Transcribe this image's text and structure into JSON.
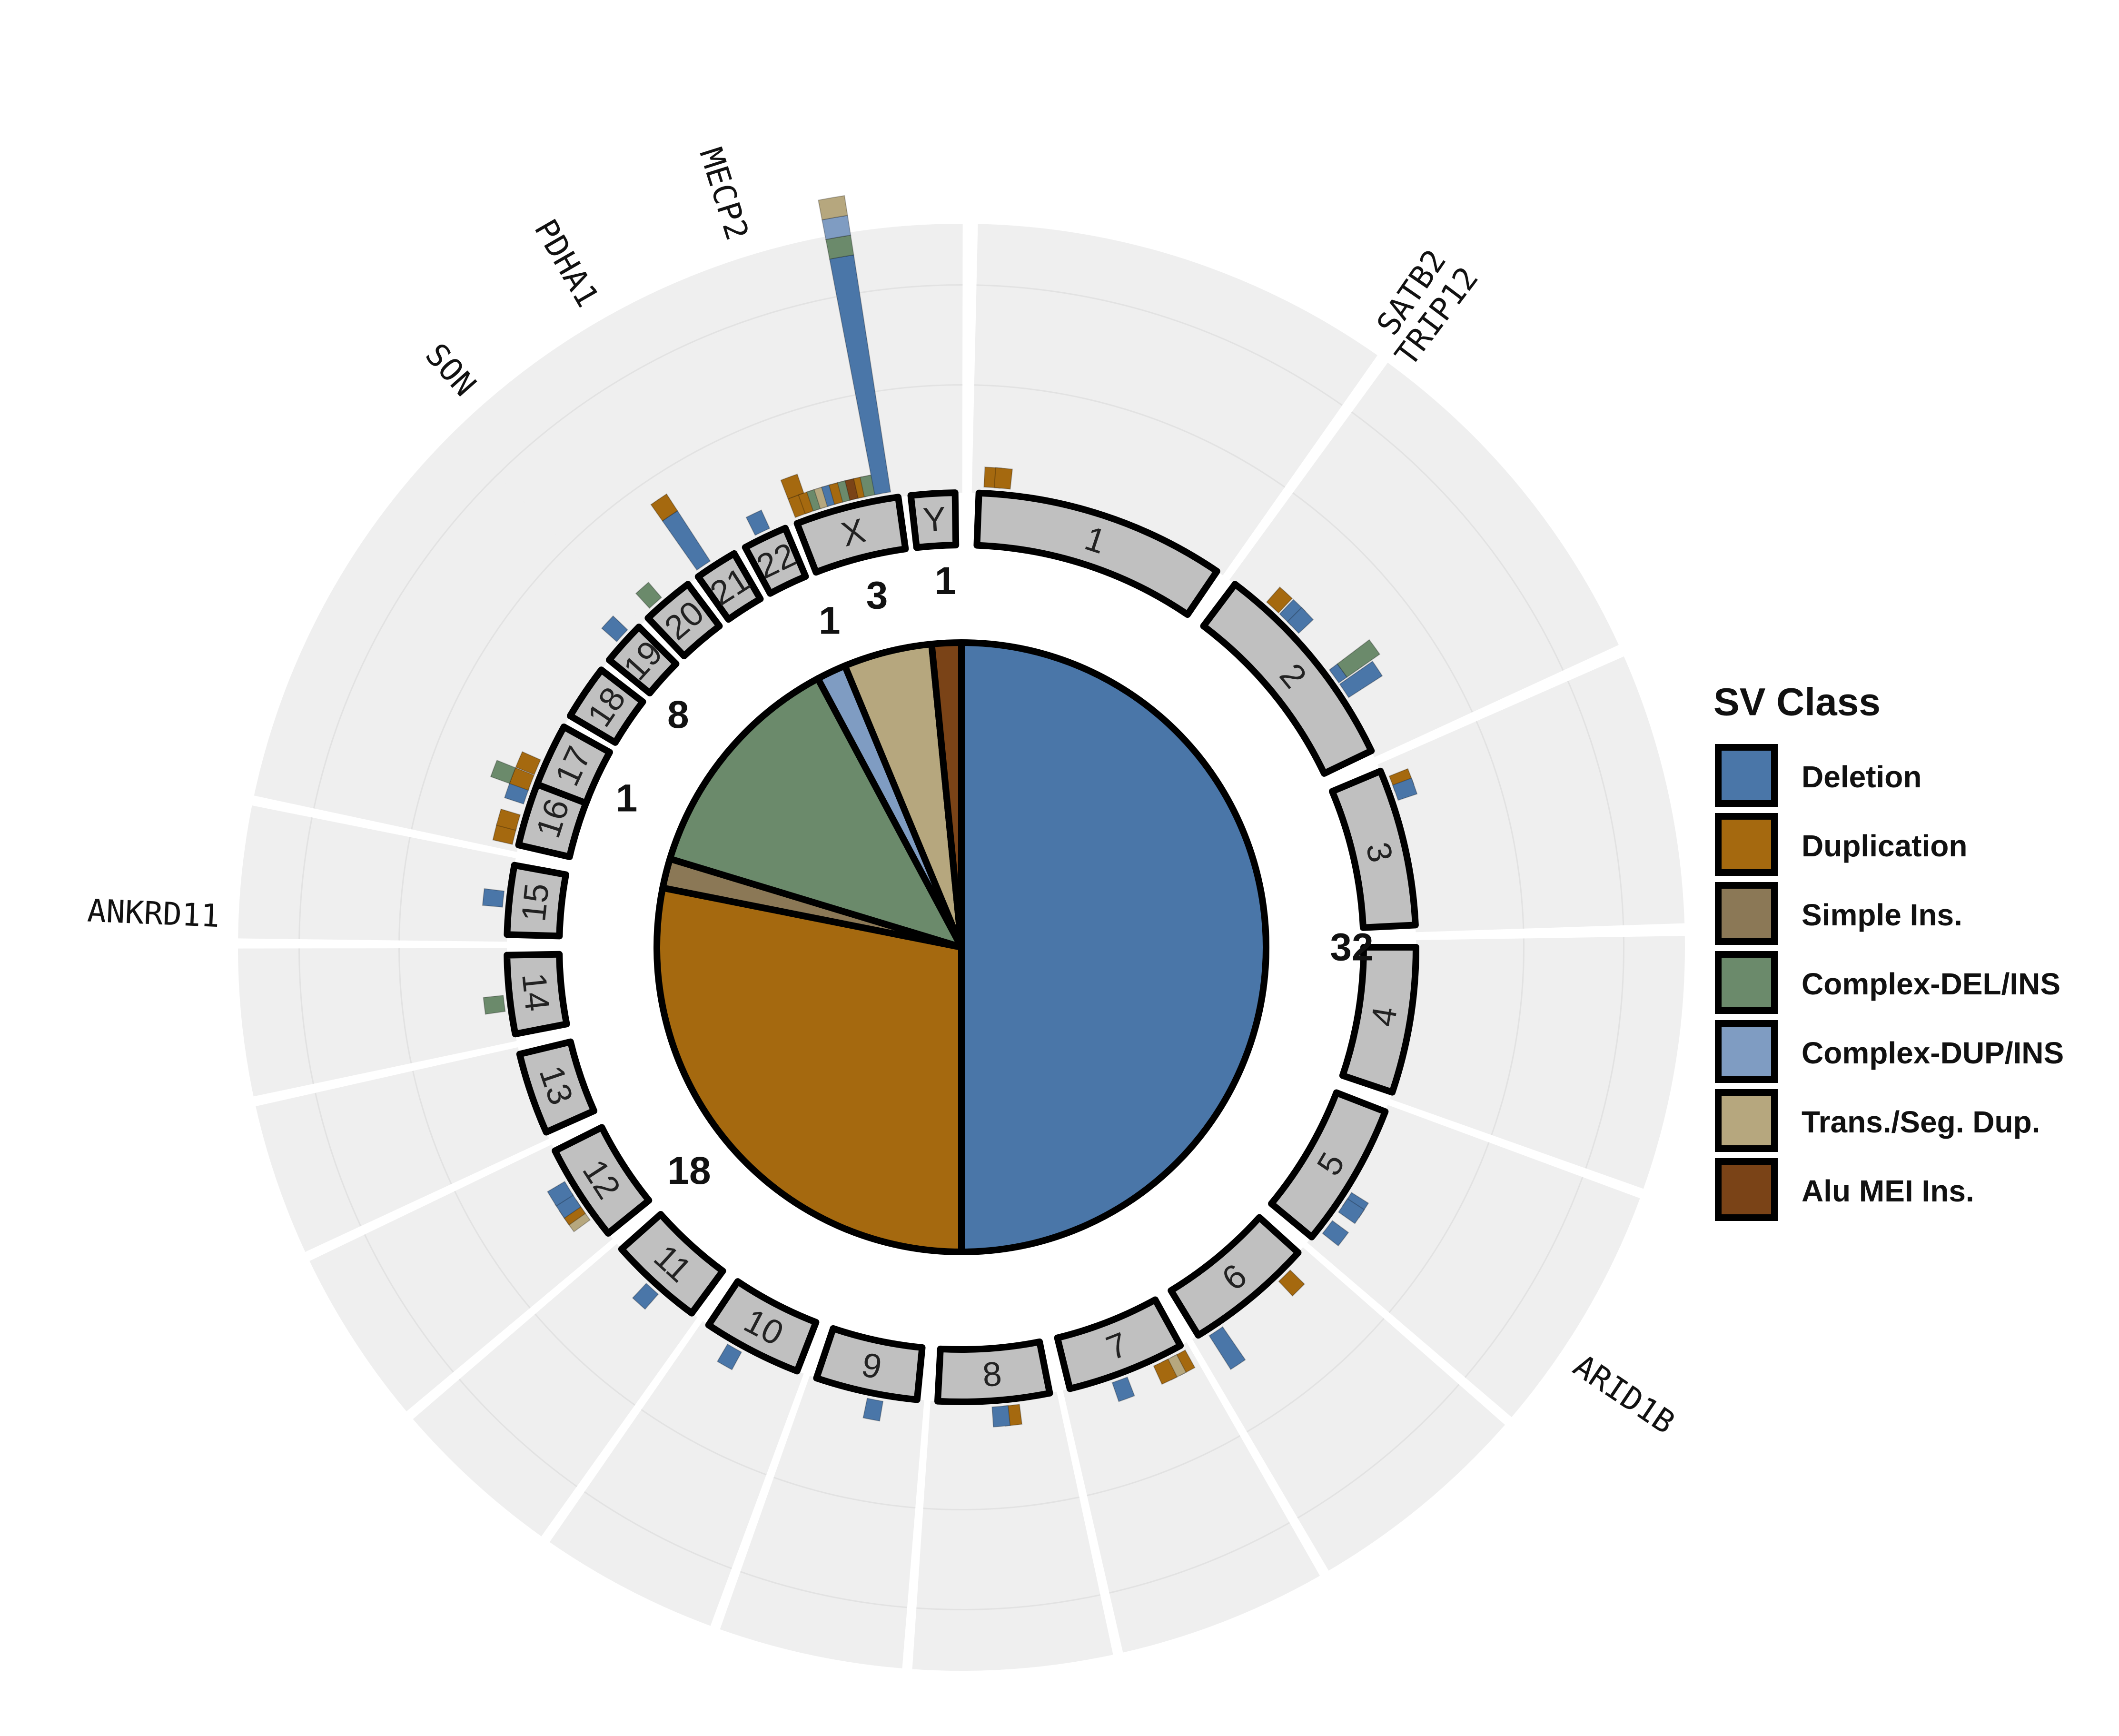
{
  "chart_data": {
    "type": "pie",
    "legend": {
      "title": "SV Class",
      "placement": "right",
      "entries": [
        {
          "label": "Deletion",
          "color": "#4A76A8"
        },
        {
          "label": "Duplication",
          "color": "#A5690F"
        },
        {
          "label": "Simple Ins.",
          "color": "#8B7856"
        },
        {
          "label": "Complex-DEL/INS",
          "color": "#6B8A6B"
        },
        {
          "label": "Complex-DUP/INS",
          "color": "#7F9CC2"
        },
        {
          "label": "Trans./Seg. Dup.",
          "color": "#B6A77E"
        },
        {
          "label": "Alu MEI Ins.",
          "color": "#7A4317"
        }
      ]
    },
    "pie": {
      "slices": [
        {
          "class": "Deletion",
          "value": 32,
          "label": "32"
        },
        {
          "class": "Duplication",
          "value": 18,
          "label": "18"
        },
        {
          "class": "Simple Ins.",
          "value": 1,
          "label": "1"
        },
        {
          "class": "Complex-DEL/INS",
          "value": 8,
          "label": "8"
        },
        {
          "class": "Complex-DUP/INS",
          "value": 1,
          "label": "1"
        },
        {
          "class": "Trans./Seg. Dup.",
          "value": 3,
          "label": "3"
        },
        {
          "class": "Alu MEI Ins.",
          "value": 1,
          "label": "1"
        }
      ]
    },
    "chromosomes": [
      "1",
      "2",
      "3",
      "4",
      "5",
      "6",
      "7",
      "8",
      "9",
      "10",
      "11",
      "12",
      "13",
      "14",
      "15",
      "16",
      "17",
      "18",
      "19",
      "20",
      "21",
      "22",
      "X",
      "Y"
    ],
    "genes": [
      {
        "label": "SATB2",
        "chrom": "2"
      },
      {
        "label": "TRIP12",
        "chrom": "2"
      },
      {
        "label": "ARID1B",
        "chrom": "6"
      },
      {
        "label": "ANKRD11",
        "chrom": "16"
      },
      {
        "label": "SON",
        "chrom": "21"
      },
      {
        "label": "PDHA1",
        "chrom": "X"
      },
      {
        "label": "MECP2",
        "chrom": "X"
      }
    ],
    "sv_track": [
      {
        "chrom": "1",
        "pos": 0.05,
        "stack": [
          [
            "Duplication",
            1
          ]
        ]
      },
      {
        "chrom": "1",
        "pos": 0.09,
        "stack": [
          [
            "Duplication",
            1
          ]
        ]
      },
      {
        "chrom": "2",
        "pos": 0.2,
        "stack": [
          [
            "Duplication",
            1
          ]
        ]
      },
      {
        "chrom": "2",
        "pos": 0.28,
        "stack": [
          [
            "Deletion",
            1
          ]
        ]
      },
      {
        "chrom": "2",
        "pos": 0.33,
        "stack": [
          [
            "Deletion",
            1
          ]
        ]
      },
      {
        "chrom": "2",
        "pos": 0.62,
        "stack": [
          [
            "Deletion",
            0.5
          ],
          [
            "Complex-DEL/INS",
            2
          ]
        ]
      },
      {
        "chrom": "2",
        "pos": 0.7,
        "stack": [
          [
            "Deletion",
            2
          ]
        ]
      },
      {
        "chrom": "3",
        "pos": 0.1,
        "stack": [
          [
            "Duplication",
            1
          ]
        ]
      },
      {
        "chrom": "3",
        "pos": 0.16,
        "stack": [
          [
            "Deletion",
            1
          ]
        ]
      },
      {
        "chrom": "5",
        "pos": 0.65,
        "stack": [
          [
            "Deletion",
            1
          ]
        ]
      },
      {
        "chrom": "5",
        "pos": 0.7,
        "stack": [
          [
            "Deletion",
            1
          ]
        ]
      },
      {
        "chrom": "5",
        "pos": 0.88,
        "stack": [
          [
            "Deletion",
            1
          ]
        ]
      },
      {
        "chrom": "6",
        "pos": 0.2,
        "stack": [
          [
            "Duplication",
            1
          ]
        ]
      },
      {
        "chrom": "6",
        "pos": 0.87,
        "stack": [
          [
            "Deletion",
            2
          ]
        ]
      },
      {
        "chrom": "7",
        "pos": 0.05,
        "stack": [
          [
            "Duplication",
            1
          ]
        ]
      },
      {
        "chrom": "7",
        "pos": 0.13,
        "stack": [
          [
            "Trans./Seg. Dup.",
            1
          ]
        ]
      },
      {
        "chrom": "7",
        "pos": 0.21,
        "stack": [
          [
            "Duplication",
            1
          ]
        ]
      },
      {
        "chrom": "7",
        "pos": 0.58,
        "stack": [
          [
            "Deletion",
            1
          ]
        ]
      },
      {
        "chrom": "8",
        "pos": 0.35,
        "stack": [
          [
            "Duplication",
            1
          ]
        ]
      },
      {
        "chrom": "8",
        "pos": 0.45,
        "stack": [
          [
            "Deletion",
            1
          ]
        ]
      },
      {
        "chrom": "9",
        "pos": 0.4,
        "stack": [
          [
            "Deletion",
            1
          ]
        ]
      },
      {
        "chrom": "10",
        "pos": 0.66,
        "stack": [
          [
            "Deletion",
            1
          ]
        ]
      },
      {
        "chrom": "11",
        "pos": 0.48,
        "stack": [
          [
            "Deletion",
            1
          ]
        ]
      },
      {
        "chrom": "12",
        "pos": 0.3,
        "stack": [
          [
            "Trans./Seg. Dup.",
            1
          ]
        ]
      },
      {
        "chrom": "12",
        "pos": 0.38,
        "stack": [
          [
            "Duplication",
            1
          ]
        ]
      },
      {
        "chrom": "12",
        "pos": 0.46,
        "stack": [
          [
            "Deletion",
            1
          ]
        ]
      },
      {
        "chrom": "12",
        "pos": 0.6,
        "stack": [
          [
            "Deletion",
            1
          ]
        ]
      },
      {
        "chrom": "14",
        "pos": 0.4,
        "stack": [
          [
            "Complex-DEL/INS",
            1
          ]
        ]
      },
      {
        "chrom": "15",
        "pos": 0.5,
        "stack": [
          [
            "Deletion",
            1
          ]
        ]
      },
      {
        "chrom": "16",
        "pos": 0.1,
        "stack": [
          [
            "Duplication",
            1
          ]
        ]
      },
      {
        "chrom": "16",
        "pos": 0.3,
        "stack": [
          [
            "Duplication",
            1
          ]
        ]
      },
      {
        "chrom": "16",
        "pos": 0.68,
        "stack": [
          [
            "Deletion",
            1
          ]
        ]
      },
      {
        "chrom": "16",
        "pos": 0.88,
        "stack": [
          [
            "Duplication",
            1
          ],
          [
            "Complex-DEL/INS",
            1
          ]
        ]
      },
      {
        "chrom": "17",
        "pos": 0.25,
        "stack": [
          [
            "Duplication",
            1
          ]
        ]
      },
      {
        "chrom": "19",
        "pos": 0.6,
        "stack": [
          [
            "Deletion",
            1
          ]
        ]
      },
      {
        "chrom": "20",
        "pos": 0.3,
        "stack": [
          [
            "Complex-DEL/INS",
            1
          ]
        ]
      },
      {
        "chrom": "21",
        "pos": 0.25,
        "stack": [
          [
            "Deletion",
            3
          ],
          [
            "Duplication",
            1
          ]
        ]
      },
      {
        "chrom": "22",
        "pos": 0.5,
        "stack": [
          [
            "Deletion",
            1
          ]
        ]
      },
      {
        "chrom": "X",
        "pos": 0.08,
        "stack": [
          [
            "Duplication",
            1
          ],
          [
            "Duplication",
            1
          ]
        ]
      },
      {
        "chrom": "X",
        "pos": 0.18,
        "stack": [
          [
            "Duplication",
            1
          ]
        ]
      },
      {
        "chrom": "X",
        "pos": 0.26,
        "stack": [
          [
            "Complex-DEL/INS",
            1
          ]
        ]
      },
      {
        "chrom": "X",
        "pos": 0.33,
        "stack": [
          [
            "Trans./Seg. Dup.",
            1
          ]
        ]
      },
      {
        "chrom": "X",
        "pos": 0.4,
        "stack": [
          [
            "Deletion",
            1
          ]
        ]
      },
      {
        "chrom": "X",
        "pos": 0.47,
        "stack": [
          [
            "Duplication",
            1
          ]
        ]
      },
      {
        "chrom": "X",
        "pos": 0.55,
        "stack": [
          [
            "Complex-DEL/INS",
            1
          ]
        ]
      },
      {
        "chrom": "X",
        "pos": 0.62,
        "stack": [
          [
            "Alu MEI Ins.",
            1
          ]
        ]
      },
      {
        "chrom": "X",
        "pos": 0.7,
        "stack": [
          [
            "Duplication",
            1
          ]
        ]
      },
      {
        "chrom": "X",
        "pos": 0.76,
        "stack": [
          [
            "Complex-DEL/INS",
            1
          ]
        ]
      },
      {
        "chrom": "X",
        "pos": 0.86,
        "stack": [
          [
            "Deletion",
            12
          ],
          [
            "Complex-DEL/INS",
            1
          ],
          [
            "Complex-DUP/INS",
            1
          ],
          [
            "Trans./Seg. Dup.",
            1
          ]
        ]
      }
    ]
  }
}
